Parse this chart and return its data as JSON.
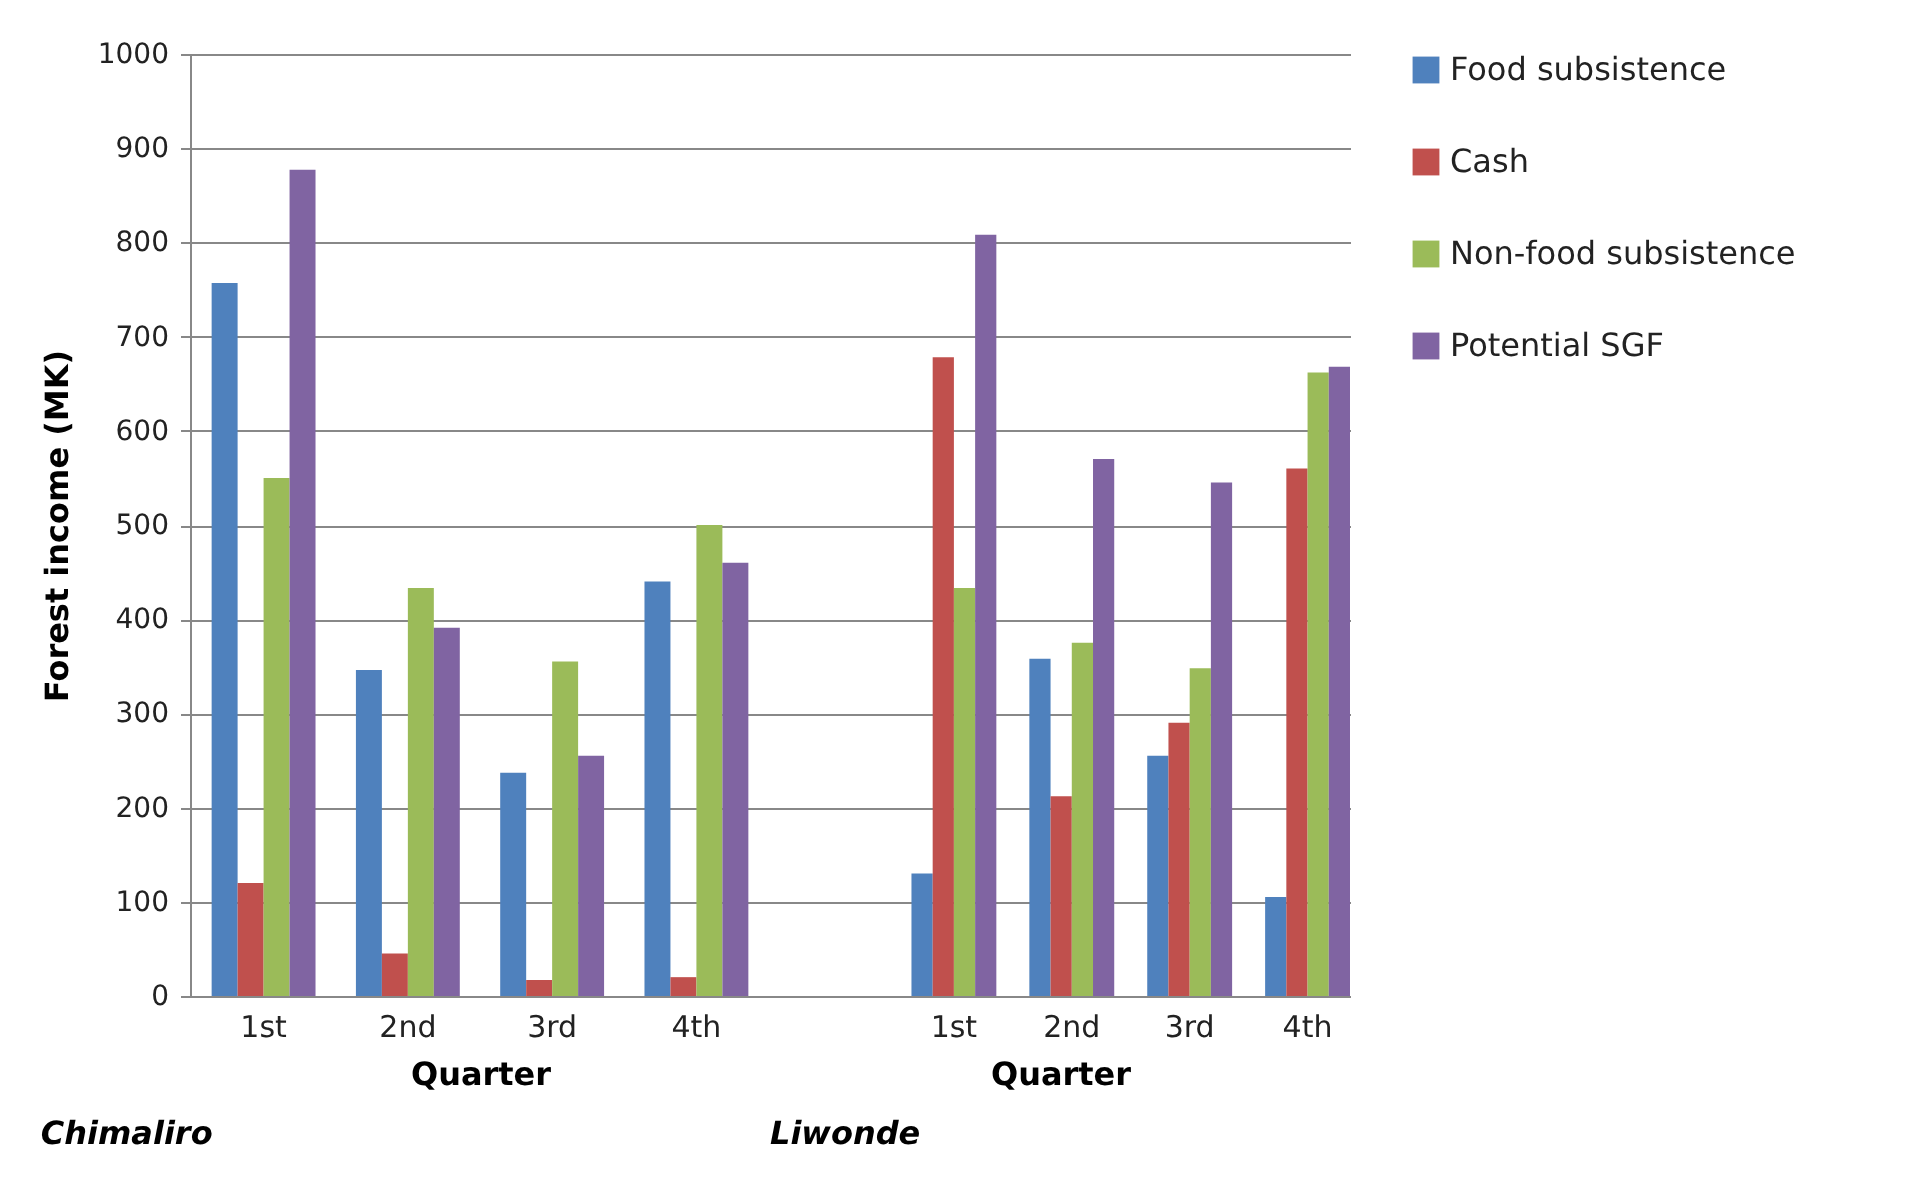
{
  "chart_data": [
    {
      "type": "bar",
      "ylabel": "Forest income (MK)",
      "xlabel": "Quarter",
      "annotations": [
        "Chimaliro"
      ],
      "categories": [
        "1st",
        "2nd",
        "3rd",
        "4th"
      ],
      "ylim": [
        0,
        1000
      ],
      "yticks": [
        0,
        100,
        200,
        300,
        400,
        500,
        600,
        700,
        800,
        900,
        1000
      ],
      "grid": "y",
      "legend": "right",
      "series": [
        {
          "name": "Food subsistence",
          "color": "#4f81bd",
          "values": [
            757,
            346,
            237,
            440
          ]
        },
        {
          "name": "Cash",
          "color": "#c0504d",
          "values": [
            120,
            45,
            17,
            20
          ]
        },
        {
          "name": "Non-food subsistence",
          "color": "#9bbb59",
          "values": [
            550,
            433,
            355,
            500
          ]
        },
        {
          "name": "Potential SGF",
          "color": "#8064a2",
          "values": [
            877,
            391,
            255,
            460
          ]
        }
      ]
    },
    {
      "type": "bar",
      "xlabel": "Quarter",
      "annotations": [
        "Liwonde"
      ],
      "categories": [
        "1st",
        "2nd",
        "3rd",
        "4th"
      ],
      "ylim": [
        0,
        1000
      ],
      "yticks": [
        0,
        100,
        200,
        300,
        400,
        500,
        600,
        700,
        800,
        900,
        1000
      ],
      "grid": "y",
      "legend": "right",
      "tick_labels": "x",
      "series": [
        {
          "name": "Food subsistence",
          "color": "#4f81bd",
          "values": [
            130,
            358,
            255,
            105
          ]
        },
        {
          "name": "Cash",
          "color": "#c0504d",
          "values": [
            678,
            212,
            290,
            560
          ]
        },
        {
          "name": "Non-food subsistence",
          "color": "#9bbb59",
          "values": [
            433,
            375,
            348,
            662
          ]
        },
        {
          "name": "Potential SGF",
          "color": "#8064a2",
          "values": [
            808,
            570,
            545,
            668
          ]
        }
      ]
    }
  ]
}
